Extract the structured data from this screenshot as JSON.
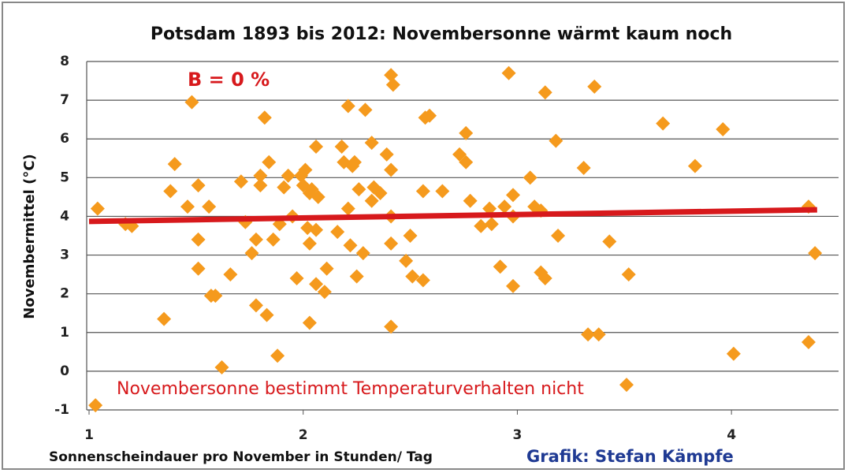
{
  "chart_data": {
    "type": "scatter",
    "title": "Potsdam 1893 bis 2012: Novembersonne wärmt kaum noch",
    "x_label": "Sonnenscheindauer pro November in Stunden/ Tag",
    "y_label": "Novembermittel (°C)",
    "annotations": [
      "B = 0 %",
      "Novembersonne bestimmt Temperaturverhalten nicht",
      "Grafik: Stefan Kämpfe"
    ],
    "color": "#f59a1d",
    "x": [
      1.04,
      1.03,
      1.17,
      1.2,
      1.35,
      1.38,
      1.4,
      1.48,
      1.46,
      1.51,
      1.51,
      1.51,
      1.56,
      1.57,
      1.59,
      1.62,
      1.66,
      1.71,
      1.73,
      1.76,
      1.78,
      1.78,
      1.8,
      1.8,
      1.82,
      1.83,
      1.84,
      1.86,
      1.88,
      1.89,
      1.91,
      1.93,
      1.95,
      1.97,
      1.99,
      2.0,
      2.01,
      2.02,
      2.03,
      2.03,
      2.03,
      2.04,
      2.06,
      2.06,
      2.06,
      2.07,
      2.1,
      2.11,
      2.16,
      2.18,
      2.19,
      2.21,
      2.21,
      2.22,
      2.23,
      2.24,
      2.25,
      2.26,
      2.28,
      2.29,
      2.32,
      2.32,
      2.33,
      2.36,
      2.39,
      2.41,
      2.41,
      2.42,
      2.41,
      2.41,
      2.41,
      2.48,
      2.5,
      2.51,
      2.56,
      2.56,
      2.57,
      2.59,
      2.65,
      2.73,
      2.76,
      2.76,
      2.78,
      2.83,
      2.87,
      2.88,
      2.92,
      2.94,
      2.96,
      2.98,
      2.98,
      2.98,
      3.06,
      3.08,
      3.11,
      3.11,
      3.13,
      3.13,
      3.18,
      3.19,
      3.31,
      3.33,
      3.36,
      3.38,
      3.43,
      3.51,
      3.52,
      3.68,
      3.83,
      3.96,
      4.01,
      4.36,
      4.36,
      4.39
    ],
    "values": [
      4.2,
      -0.88,
      3.8,
      3.75,
      1.35,
      4.65,
      5.35,
      6.95,
      4.25,
      4.8,
      3.4,
      2.65,
      4.25,
      1.95,
      1.95,
      0.1,
      2.5,
      4.9,
      3.85,
      3.05,
      3.4,
      1.7,
      4.8,
      5.05,
      6.55,
      1.45,
      5.4,
      3.4,
      0.4,
      3.8,
      4.75,
      5.05,
      4.0,
      2.4,
      5.05,
      4.8,
      5.2,
      3.7,
      4.6,
      3.3,
      1.25,
      4.7,
      3.65,
      5.8,
      2.25,
      4.5,
      2.05,
      2.65,
      3.6,
      5.8,
      5.4,
      6.85,
      4.2,
      3.25,
      5.3,
      5.4,
      2.45,
      4.7,
      3.05,
      6.75,
      5.9,
      4.4,
      4.75,
      4.6,
      5.6,
      5.2,
      7.65,
      7.4,
      4.0,
      3.3,
      1.15,
      2.85,
      3.5,
      2.45,
      4.65,
      2.35,
      6.55,
      6.6,
      4.65,
      5.6,
      5.4,
      6.15,
      4.4,
      3.75,
      4.2,
      3.8,
      2.7,
      4.25,
      7.7,
      4.0,
      4.55,
      2.2,
      5.0,
      4.25,
      4.15,
      2.55,
      7.2,
      2.4,
      5.95,
      3.5,
      5.25,
      0.95,
      7.35,
      0.95,
      3.35,
      -0.35,
      2.5,
      6.4,
      5.3,
      6.25,
      0.45,
      4.25,
      0.75,
      3.05
    ],
    "trendline": {
      "x": [
        1.0,
        4.4
      ],
      "values": [
        3.87,
        4.17
      ],
      "color": "#d7191c"
    },
    "xlim": [
      1,
      4.5
    ],
    "xticks": [
      1,
      2,
      3,
      4
    ],
    "ylim": [
      -1,
      8
    ],
    "yticks": [
      -1,
      0,
      1,
      2,
      3,
      4,
      5,
      6,
      7,
      8
    ],
    "grid": true
  }
}
